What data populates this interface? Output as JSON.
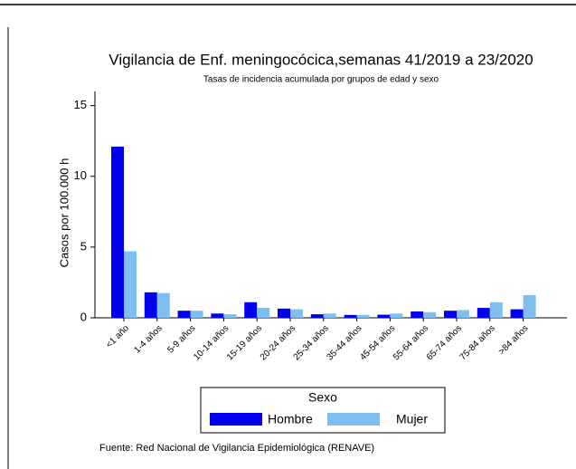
{
  "chart_data": {
    "type": "bar",
    "title": "Vigilancia de Enf. meningocócica,semanas 41/2019 a 23/2020",
    "subtitle": "Tasas de incidencia acumulada por grupos de edad y sexo",
    "y_label": "Casos por 100.000 h",
    "categories": [
      "<1 año",
      "1-4 años",
      "5-9 años",
      "10-14 años",
      "15-19 años",
      "20-24 años",
      "25-34 años",
      "35-44 años",
      "45-54 años",
      "55-64 años",
      "65-74 años",
      "75-84 años",
      ">84 años"
    ],
    "series": [
      {
        "name": "Hombre",
        "color": "#0000ee",
        "values": [
          12.1,
          1.8,
          0.5,
          0.3,
          1.1,
          0.65,
          0.25,
          0.2,
          0.22,
          0.45,
          0.5,
          0.7,
          0.6
        ]
      },
      {
        "name": "Mujer",
        "color": "#7fbfef",
        "values": [
          4.7,
          1.75,
          0.5,
          0.25,
          0.7,
          0.6,
          0.3,
          0.2,
          0.3,
          0.4,
          0.55,
          1.1,
          1.6
        ]
      }
    ],
    "ylim": [
      0,
      16
    ],
    "yticks": [
      0,
      5,
      10,
      15
    ],
    "legend_title": "Sexo",
    "footnote": "Fuente: Red Nacional de Vigilancia Epidemiológica (RENAVE)"
  }
}
